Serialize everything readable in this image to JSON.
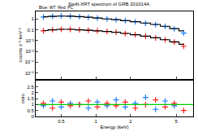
{
  "chart_data": [
    {
      "type": "scatter",
      "title": "Swift-XRT spectrum of GRB 201014A",
      "annotation": "Blue: WT  Red: PC",
      "y_label": "counts s⁻¹ keV⁻¹",
      "log": true,
      "tick_labels": "y",
      "xlim": [
        0.3,
        7
      ],
      "xticks": [
        0.5,
        1,
        2,
        5
      ],
      "ylim": [
        3e-06,
        5
      ],
      "yticks": [
        1,
        0.1,
        {
          "value": 0.01,
          "label": "10⁻²"
        },
        {
          "value": 0.001,
          "label": "10⁻³"
        },
        {
          "value": 0.0001,
          "label": "10⁻⁴"
        },
        {
          "value": 1e-05,
          "label": "10⁻⁵"
        }
      ],
      "series": [
        {
          "type": "scatter",
          "marker": "cross",
          "color": "#1e7fff",
          "x": [
            0.35,
            0.42,
            0.5,
            0.6,
            0.72,
            0.86,
            1.03,
            1.25,
            1.5,
            1.8,
            2.2,
            2.7,
            3.3,
            4.0,
            4.8,
            5.8
          ],
          "values": [
            1.5,
            1.8,
            1.9,
            1.8,
            1.6,
            1.4,
            1.2,
            1.0,
            0.85,
            0.7,
            0.55,
            0.4,
            0.3,
            0.2,
            0.12,
            0.05
          ]
        },
        {
          "type": "line",
          "line_style": "step",
          "color": "#000000",
          "x": [
            0.35,
            0.42,
            0.5,
            0.6,
            0.72,
            0.86,
            1.03,
            1.25,
            1.5,
            1.8,
            2.2,
            2.7,
            3.3,
            4.0,
            4.8,
            5.8
          ],
          "values": [
            1.6,
            1.75,
            1.85,
            1.8,
            1.65,
            1.45,
            1.2,
            1.0,
            0.85,
            0.7,
            0.55,
            0.42,
            0.31,
            0.21,
            0.13,
            0.08
          ]
        },
        {
          "type": "scatter",
          "marker": "cross",
          "color": "#ff2020",
          "x": [
            0.35,
            0.42,
            0.5,
            0.6,
            0.72,
            0.86,
            1.03,
            1.25,
            1.5,
            1.8,
            2.2,
            2.7,
            3.3,
            4.0,
            4.8,
            5.8
          ],
          "values": [
            0.08,
            0.1,
            0.11,
            0.11,
            0.1,
            0.09,
            0.08,
            0.07,
            0.06,
            0.045,
            0.035,
            0.025,
            0.018,
            0.012,
            0.007,
            0.003
          ]
        },
        {
          "type": "line",
          "line_style": "step",
          "color": "#000000",
          "x": [
            0.35,
            0.42,
            0.5,
            0.6,
            0.72,
            0.86,
            1.03,
            1.25,
            1.5,
            1.8,
            2.2,
            2.7,
            3.3,
            4.0,
            4.8,
            5.8
          ],
          "values": [
            0.085,
            0.1,
            0.11,
            0.11,
            0.1,
            0.09,
            0.08,
            0.07,
            0.058,
            0.046,
            0.035,
            0.026,
            0.018,
            0.012,
            0.0075,
            0.0045
          ]
        }
      ]
    },
    {
      "type": "scatter",
      "y_label": "ratio",
      "x_label": "Energy (keV)",
      "log": "x",
      "xlim": [
        0.3,
        7
      ],
      "xticks": [
        0.5,
        1,
        2,
        5
      ],
      "ylim": [
        0,
        3
      ],
      "yticks": [
        0,
        0.5,
        1,
        1.5,
        2,
        2.5
      ],
      "series": [
        {
          "type": "scatter",
          "marker": "cross",
          "color": "#1e7fff",
          "x": [
            0.35,
            0.42,
            0.5,
            0.6,
            0.72,
            0.86,
            1.03,
            1.25,
            1.5,
            1.8,
            2.2,
            2.7,
            3.3,
            4.0,
            4.8
          ],
          "values": [
            0.9,
            1.3,
            0.8,
            1.1,
            1.0,
            0.7,
            1.2,
            0.9,
            1.4,
            0.8,
            1.1,
            1.6,
            0.6,
            1.3,
            0.9
          ]
        },
        {
          "type": "scatter",
          "marker": "cross",
          "color": "#ff2020",
          "x": [
            0.35,
            0.42,
            0.5,
            0.6,
            0.72,
            0.86,
            1.03,
            1.25,
            1.5,
            1.8,
            2.2,
            2.7,
            3.3,
            4.0,
            4.8,
            5.8
          ],
          "values": [
            1.1,
            0.7,
            1.2,
            0.9,
            1.0,
            1.3,
            0.8,
            1.1,
            0.9,
            1.2,
            0.7,
            1.0,
            1.4,
            0.8,
            1.1,
            0.5
          ]
        },
        {
          "type": "line",
          "color": "#00cc00",
          "x": [
            0.3,
            7
          ],
          "values": [
            1,
            1
          ]
        }
      ]
    }
  ]
}
